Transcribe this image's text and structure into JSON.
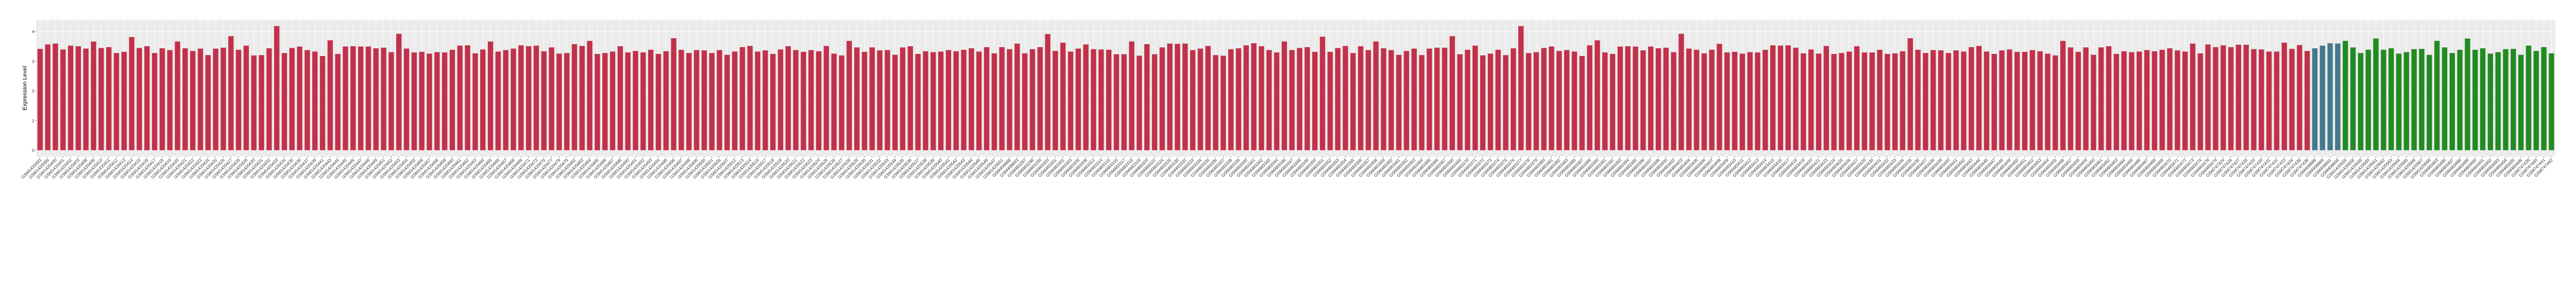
{
  "chart_data": {
    "type": "bar",
    "title": "",
    "xlabel": "",
    "ylabel": "Expression Level",
    "ylim": [
      -0.21,
      4.4
    ],
    "yticks": [
      0,
      1,
      2,
      3,
      4
    ],
    "grid": true,
    "legend": "none",
    "palette": [
      "#C2314A",
      "#44798B",
      "#228B22"
    ],
    "categories": [
      "GSM1420393",
      "GSM1420395",
      "GSM1420400",
      "GSM1420401",
      "GSM1420402",
      "GSM1420403",
      "GSM1420408",
      "GSM1420409",
      "GSM1420410",
      "GSM1420411",
      "GSM1420412",
      "GSM1420413",
      "GSM1420414",
      "GSM1420415",
      "GSM1420416",
      "GSM1420417",
      "GSM1420418",
      "GSM1420419",
      "GSM1420420",
      "GSM1420421",
      "GSM1420422",
      "GSM1420423",
      "GSM1420424",
      "GSM1420425",
      "GSM1420426",
      "GSM1420427",
      "GSM1420428",
      "GSM1420429",
      "GSM1420430",
      "GSM1420431",
      "GSM1420432",
      "GSM1420433",
      "GSM1420434",
      "GSM1420435",
      "GSM1420436",
      "GSM1420437",
      "GSM1420439",
      "GSM1420441",
      "GSM1420443",
      "GSM1420444",
      "GSM1420445",
      "GSM1420446",
      "GSM1420447",
      "GSM1420448",
      "GSM1420449",
      "GSM1420451",
      "GSM1420452",
      "GSM1420453",
      "GSM1420454",
      "GSM1420455",
      "GSM1420456",
      "GSM1420457",
      "GSM1420458",
      "GSM1420459",
      "GSM1420460",
      "GSM1420461",
      "GSM1420462",
      "GSM1420463",
      "GSM1420464",
      "GSM1420465",
      "GSM1420466",
      "GSM1420467",
      "GSM1420468",
      "GSM1420469",
      "GSM1420471",
      "GSM1420473",
      "GSM1420475",
      "GSM1420477",
      "GSM1420478",
      "GSM1420479",
      "GSM1420482",
      "GSM1420483",
      "GSM1420484",
      "GSM1420485",
      "GSM1420486",
      "GSM1420487",
      "GSM1420488",
      "GSM1420490",
      "GSM1420491",
      "GSM1420492",
      "GSM1420493",
      "GSM1420494",
      "GSM1420495",
      "GSM1420496",
      "GSM1420497",
      "GSM1420498",
      "GSM1420499",
      "GSM1420500",
      "GSM1420501",
      "GSM1420505",
      "GSM1420507",
      "GSM1420512",
      "GSM1420513",
      "GSM1420514",
      "GSM1420515",
      "GSM1420517",
      "GSM1420518",
      "GSM1420519",
      "GSM1420520",
      "GSM1420521",
      "GSM1420522",
      "GSM1420523",
      "GSM1420524",
      "GSM1420525",
      "GSM1420526",
      "GSM1420527",
      "GSM1420528",
      "GSM1420529",
      "GSM1420530",
      "GSM1420531",
      "GSM1420532",
      "GSM1420533",
      "GSM1420534",
      "GSM1420535",
      "GSM1420536",
      "GSM1420537",
      "GSM1420538",
      "GSM1420539",
      "GSM1420540",
      "GSM1420541",
      "GSM1420542",
      "GSM1420543",
      "GSM1420544",
      "GSM1420545",
      "GSM1420546",
      "GSM1420547",
      "GSM1420551",
      "GSM408888",
      "GSM408893",
      "GSM483297",
      "GSM483298",
      "GSM483299",
      "GSM483300",
      "GSM483301",
      "GSM483302",
      "GSM483303",
      "GSM483305",
      "GSM483308",
      "GSM483312",
      "GSM483314",
      "GSM483315",
      "GSM483316",
      "GSM483317",
      "GSM483318",
      "GSM483319",
      "GSM483320",
      "GSM483322",
      "GSM483324",
      "GSM483325",
      "GSM483330",
      "GSM483332",
      "GSM483333",
      "GSM483334",
      "GSM483335",
      "GSM483336",
      "GSM483337",
      "GSM483338",
      "GSM483339",
      "GSM483340",
      "GSM483341",
      "GSM483342",
      "GSM483343",
      "GSM483344",
      "GSM483346",
      "GSM483347",
      "GSM483348",
      "GSM483349",
      "GSM483350",
      "GSM483351",
      "GSM483352",
      "GSM483353",
      "GSM483354",
      "GSM483355",
      "GSM483356",
      "GSM483357",
      "GSM483358",
      "GSM483359",
      "GSM483360",
      "GSM483361",
      "GSM483362",
      "GSM483363",
      "GSM483364",
      "GSM483365",
      "GSM483366",
      "GSM483367",
      "GSM483368",
      "GSM483369",
      "GSM483370",
      "GSM483371",
      "GSM483372",
      "GSM483373",
      "GSM483374",
      "GSM483375",
      "GSM483376",
      "GSM483377",
      "GSM483378",
      "GSM483379",
      "GSM483380",
      "GSM483381",
      "GSM483382",
      "GSM483383",
      "GSM483385",
      "GSM483387",
      "GSM483389",
      "GSM483390",
      "GSM483391",
      "GSM483392",
      "GSM483393",
      "GSM483394",
      "GSM483395",
      "GSM483396",
      "GSM483397",
      "GSM483398",
      "GSM483400",
      "GSM483402",
      "GSM483403",
      "GSM483404",
      "GSM483405",
      "GSM483406",
      "GSM483407",
      "GSM483408",
      "GSM483409",
      "GSM483410",
      "GSM483411",
      "GSM483412",
      "GSM483413",
      "GSM483414",
      "GSM483415",
      "GSM483416",
      "GSM483417",
      "GSM483418",
      "GSM483419",
      "GSM483420",
      "GSM483421",
      "GSM483423",
      "GSM483424",
      "GSM483425",
      "GSM483426",
      "GSM483427",
      "GSM483429",
      "GSM483430",
      "GSM483431",
      "GSM483432",
      "GSM483433",
      "GSM483434",
      "GSM483435",
      "GSM483436",
      "GSM483437",
      "GSM483438",
      "GSM483439",
      "GSM483440",
      "GSM483441",
      "GSM483442",
      "GSM483443",
      "GSM483444",
      "GSM483445",
      "GSM483447",
      "GSM483448",
      "GSM483449",
      "GSM483450",
      "GSM483451",
      "GSM483452",
      "GSM483453",
      "GSM483454",
      "GSM483455",
      "GSM483456",
      "GSM483457",
      "GSM483458",
      "GSM483459",
      "GSM483460",
      "GSM483461",
      "GSM483462",
      "GSM483463",
      "GSM483464",
      "GSM483465",
      "GSM483466",
      "GSM483467",
      "GSM483468",
      "GSM483469",
      "GSM483470",
      "GSM483471",
      "GSM483472",
      "GSM483473",
      "GSM483474",
      "GSM483478",
      "GSM483479",
      "GSM747424",
      "GSM747426",
      "GSM747427",
      "GSM747428",
      "GSM747429",
      "GSM747430",
      "GSM747431",
      "GSM747432",
      "GSM747433",
      "GSM747434",
      "GSM747436",
      "GSM747438",
      "GSM408886",
      "GSM408889",
      "GSM408891",
      "GSM408894",
      "GSM1420555",
      "GSM1420558",
      "GSM1420559",
      "GSM1420560",
      "GSM1420561",
      "GSM1420562",
      "GSM1420563",
      "GSM1420564",
      "GSM1420565",
      "GSM1420566",
      "GSM1420567",
      "GSM1420568",
      "GSM483483",
      "GSM483486",
      "GSM483487",
      "GSM483488",
      "GSM483489",
      "GSM483490",
      "GSM483491",
      "GSM483492",
      "GSM483493",
      "GSM483494",
      "GSM483495",
      "GSM483496",
      "GSM747439",
      "GSM747440",
      "GSM747441",
      "GSM747442"
    ],
    "values": [
      3.42,
      3.57,
      3.6,
      3.4,
      3.53,
      3.51,
      3.43,
      3.67,
      3.45,
      3.48,
      3.28,
      3.32,
      3.82,
      3.45,
      3.51,
      3.28,
      3.44,
      3.38,
      3.67,
      3.44,
      3.35,
      3.43,
      3.21,
      3.43,
      3.46,
      3.85,
      3.39,
      3.53,
      3.2,
      3.21,
      3.44,
      4.19,
      3.28,
      3.45,
      3.5,
      3.38,
      3.33,
      3.18,
      3.71,
      3.25,
      3.5,
      3.51,
      3.5,
      3.5,
      3.44,
      3.46,
      3.31,
      3.93,
      3.43,
      3.3,
      3.32,
      3.26,
      3.31,
      3.3,
      3.39,
      3.53,
      3.54,
      3.27,
      3.4,
      3.67,
      3.33,
      3.38,
      3.43,
      3.54,
      3.51,
      3.53,
      3.34,
      3.47,
      3.26,
      3.28,
      3.58,
      3.52,
      3.69,
      3.25,
      3.28,
      3.33,
      3.51,
      3.3,
      3.35,
      3.3,
      3.39,
      3.25,
      3.34,
      3.78,
      3.39,
      3.28,
      3.38,
      3.37,
      3.28,
      3.38,
      3.22,
      3.33,
      3.48,
      3.52,
      3.33,
      3.37,
      3.25,
      3.4,
      3.51,
      3.38,
      3.32,
      3.38,
      3.34,
      3.52,
      3.26,
      3.2,
      3.69,
      3.47,
      3.32,
      3.47,
      3.37,
      3.38,
      3.22,
      3.47,
      3.51,
      3.25,
      3.34,
      3.31,
      3.33,
      3.38,
      3.34,
      3.39,
      3.44,
      3.33,
      3.48,
      3.27,
      3.48,
      3.41,
      3.6,
      3.27,
      3.41,
      3.48,
      3.92,
      3.35,
      3.63,
      3.33,
      3.43,
      3.57,
      3.41,
      3.4,
      3.39,
      3.24,
      3.24,
      3.67,
      3.19,
      3.58,
      3.24,
      3.47,
      3.6,
      3.59,
      3.6,
      3.38,
      3.43,
      3.52,
      3.21,
      3.19,
      3.41,
      3.44,
      3.54,
      3.61,
      3.51,
      3.38,
      3.3,
      3.67,
      3.38,
      3.45,
      3.48,
      3.32,
      3.83,
      3.32,
      3.45,
      3.52,
      3.28,
      3.51,
      3.38,
      3.67,
      3.44,
      3.38,
      3.22,
      3.35,
      3.43,
      3.21,
      3.43,
      3.46,
      3.46,
      3.85,
      3.24,
      3.39,
      3.53,
      3.2,
      3.26,
      3.39,
      3.21,
      3.44,
      4.19,
      3.28,
      3.31,
      3.45,
      3.5,
      3.35,
      3.38,
      3.33,
      3.18,
      3.54,
      3.71,
      3.3,
      3.25,
      3.5,
      3.51,
      3.5,
      3.37,
      3.5,
      3.44,
      3.46,
      3.31,
      3.93,
      3.43,
      3.39,
      3.27,
      3.39,
      3.59,
      3.3,
      3.32,
      3.26,
      3.31,
      3.3,
      3.39,
      3.54,
      3.53,
      3.54,
      3.46,
      3.27,
      3.4,
      3.26,
      3.52,
      3.25,
      3.28,
      3.33,
      3.51,
      3.3,
      3.3,
      3.39,
      3.25,
      3.27,
      3.34,
      3.78,
      3.39,
      3.28,
      3.38,
      3.37,
      3.28,
      3.37,
      3.33,
      3.48,
      3.52,
      3.33,
      3.25,
      3.37,
      3.4,
      3.32,
      3.32,
      3.38,
      3.34,
      3.26,
      3.2,
      3.69,
      3.47,
      3.32,
      3.47,
      3.22,
      3.47,
      3.51,
      3.25,
      3.34,
      3.31,
      3.33,
      3.38,
      3.34,
      3.39,
      3.44,
      3.37,
      3.33,
      3.6,
      3.27,
      3.57,
      3.48,
      3.54,
      3.48,
      3.56,
      3.56,
      3.41,
      3.4,
      3.33,
      3.33,
      3.63,
      3.42,
      3.55,
      3.35,
      3.44,
      3.53,
      3.61,
      3.6,
      3.69,
      3.47,
      3.28,
      3.39,
      3.77,
      3.39,
      3.44,
      3.26,
      3.31,
      3.41,
      3.42,
      3.22,
      3.69,
      3.47,
      3.28,
      3.39,
      3.77,
      3.39,
      3.44,
      3.26,
      3.31,
      3.41,
      3.42,
      3.22,
      3.53,
      3.35,
      3.48,
      3.27
    ],
    "group_sizes": [
      298,
      4,
      28
    ]
  }
}
